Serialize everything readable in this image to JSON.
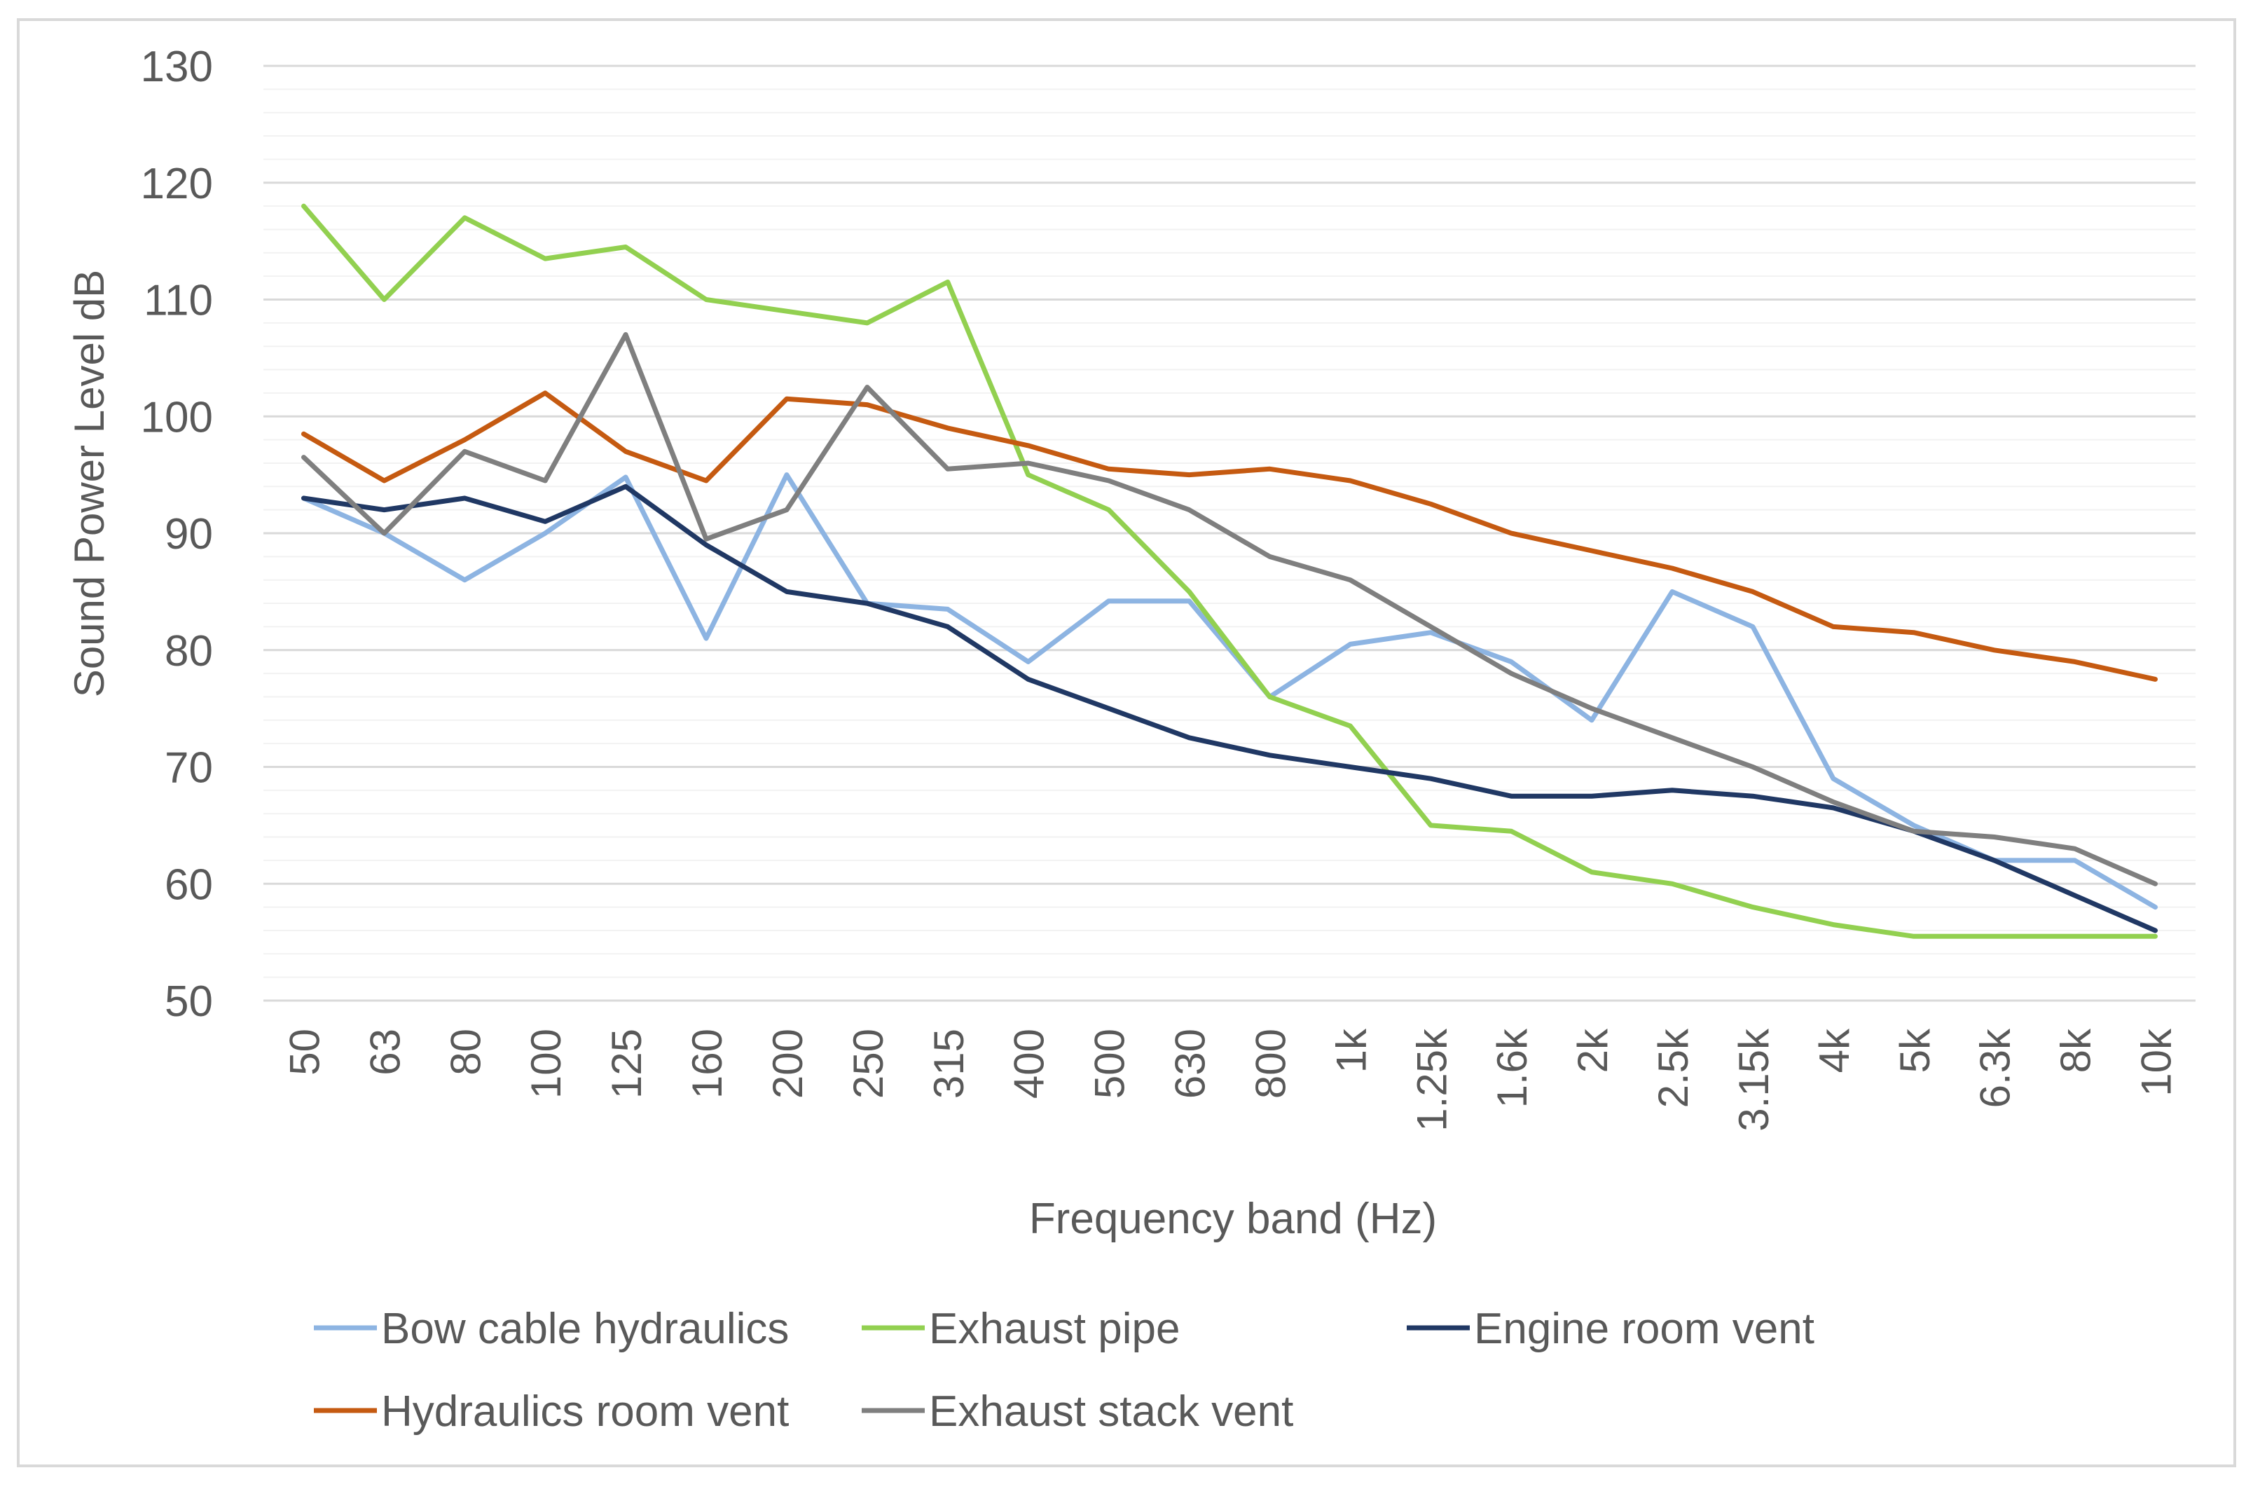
{
  "chart_data": {
    "type": "line",
    "title": "",
    "xlabel": "Frequency band (Hz)",
    "ylabel": "Sound Power Level dB",
    "ylim": [
      50,
      130
    ],
    "y_ticks": [
      "50",
      "60",
      "70",
      "80",
      "90",
      "100",
      "110",
      "120",
      "130"
    ],
    "y_minor_step": 2,
    "grid": true,
    "legend_position": "bottom",
    "categories": [
      "50",
      "63",
      "80",
      "100",
      "125",
      "160",
      "200",
      "250",
      "315",
      "400",
      "500",
      "630",
      "800",
      "1k",
      "1.25k",
      "1.6k",
      "2k",
      "2.5k",
      "3.15k",
      "4k",
      "5k",
      "6.3k",
      "8k",
      "10k"
    ],
    "series": [
      {
        "name": "Bow cable hydraulics",
        "color": "#8DB4E2",
        "values": [
          93,
          90,
          86,
          90,
          94.8,
          81,
          95,
          84,
          83.5,
          79,
          84.2,
          84.2,
          76,
          80.5,
          81.5,
          79,
          74,
          85,
          82,
          69,
          65,
          62,
          62,
          58
        ]
      },
      {
        "name": "Exhaust pipe",
        "color": "#92D050",
        "values": [
          118,
          110,
          117,
          113.5,
          114.5,
          110,
          109,
          108,
          111.5,
          95,
          92,
          85,
          76,
          73.5,
          65,
          64.5,
          61,
          60,
          58,
          56.5,
          55.5,
          55.5,
          55.5,
          55.5
        ]
      },
      {
        "name": "Engine room vent",
        "color": "#203864",
        "values": [
          93,
          92,
          93,
          91,
          94,
          89,
          85,
          84,
          82,
          77.5,
          75,
          72.5,
          71,
          70,
          69,
          67.5,
          67.5,
          68,
          67.5,
          66.5,
          64.5,
          62,
          59,
          56
        ]
      },
      {
        "name": "Hydraulics room vent",
        "color": "#C55A11",
        "values": [
          98.5,
          94.5,
          98,
          102,
          97,
          94.5,
          101.5,
          101,
          99,
          97.5,
          95.5,
          95,
          95.5,
          94.5,
          92.5,
          90,
          88.5,
          87,
          85,
          82,
          81.5,
          80,
          79,
          77.5
        ]
      },
      {
        "name": "Exhaust stack vent",
        "color": "#7F7F7F",
        "values": [
          96.5,
          90,
          97,
          94.5,
          107,
          89.5,
          92,
          102.5,
          95.5,
          96,
          94.5,
          92,
          88,
          86,
          82,
          78,
          75,
          72.5,
          70,
          67,
          64.5,
          64,
          63,
          60
        ]
      }
    ]
  }
}
